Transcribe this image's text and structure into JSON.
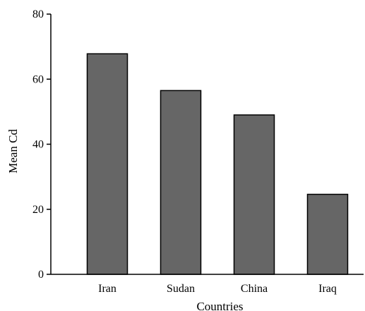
{
  "chart_data": {
    "type": "bar",
    "categories": [
      "Iran",
      "Sudan",
      "China",
      "Iraq"
    ],
    "values": [
      67.8,
      56.5,
      49.0,
      24.6
    ],
    "xlabel": "Countries",
    "ylabel": "Mean Cd",
    "ylim": [
      0,
      80
    ],
    "yticks": [
      0,
      20,
      40,
      60,
      80
    ],
    "grid": false,
    "bar_color": "#666666",
    "bar_edge_color": "#000000"
  }
}
